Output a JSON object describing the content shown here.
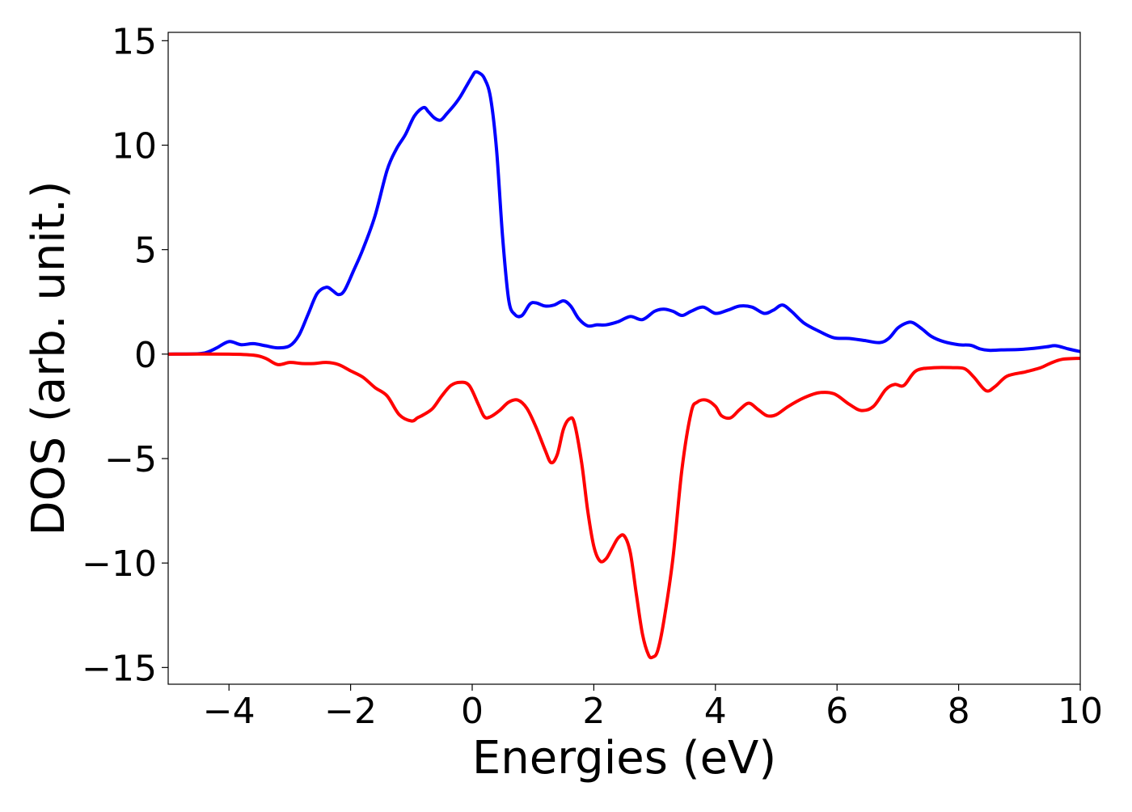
{
  "chart_data": {
    "type": "line",
    "title": "",
    "xlabel": "Energies (eV)",
    "ylabel": "DOS (arb. unit.)",
    "xlim": [
      -5,
      10
    ],
    "ylim": [
      -15.8,
      15.4
    ],
    "xticks": [
      -4,
      -2,
      0,
      2,
      4,
      6,
      8,
      10
    ],
    "xtick_labels": [
      "−4",
      "−2",
      "0",
      "2",
      "4",
      "6",
      "8",
      "10"
    ],
    "yticks": [
      15,
      10,
      5,
      0,
      -5,
      -10,
      -15
    ],
    "ytick_labels": [
      "15",
      "10",
      "5",
      "0",
      "−5",
      "−10",
      "−15"
    ],
    "grid": false,
    "legend": "none",
    "series": [
      {
        "color": "#0000ff",
        "x": [
          -5.0,
          -4.5,
          -4.35,
          -4.2,
          -4.0,
          -3.8,
          -3.6,
          -3.4,
          -3.2,
          -3.0,
          -2.85,
          -2.7,
          -2.55,
          -2.4,
          -2.3,
          -2.2,
          -2.1,
          -1.95,
          -1.8,
          -1.6,
          -1.4,
          -1.25,
          -1.1,
          -0.95,
          -0.8,
          -0.72,
          -0.62,
          -0.52,
          -0.42,
          -0.3,
          -0.2,
          -0.1,
          0.0,
          0.05,
          0.12,
          0.2,
          0.3,
          0.4,
          0.5,
          0.6,
          0.7,
          0.82,
          0.95,
          1.05,
          1.2,
          1.35,
          1.5,
          1.62,
          1.75,
          1.9,
          2.05,
          2.2,
          2.4,
          2.6,
          2.8,
          3.0,
          3.15,
          3.3,
          3.45,
          3.6,
          3.8,
          4.0,
          4.2,
          4.4,
          4.6,
          4.8,
          4.95,
          5.1,
          5.25,
          5.45,
          5.7,
          5.95,
          6.2,
          6.45,
          6.7,
          6.85,
          7.0,
          7.15,
          7.25,
          7.4,
          7.55,
          7.75,
          8.0,
          8.2,
          8.35,
          8.5,
          8.7,
          9.0,
          9.25,
          9.45,
          9.6,
          9.8,
          10.0
        ],
        "values": [
          0.0,
          0.02,
          0.1,
          0.3,
          0.6,
          0.45,
          0.5,
          0.4,
          0.3,
          0.4,
          0.9,
          1.9,
          2.9,
          3.2,
          3.05,
          2.85,
          3.05,
          4.0,
          5.0,
          6.6,
          8.8,
          9.8,
          10.5,
          11.4,
          11.8,
          11.6,
          11.3,
          11.2,
          11.5,
          11.9,
          12.3,
          12.8,
          13.3,
          13.5,
          13.45,
          13.2,
          12.3,
          9.8,
          5.6,
          2.6,
          1.9,
          1.85,
          2.4,
          2.45,
          2.3,
          2.35,
          2.55,
          2.3,
          1.7,
          1.35,
          1.4,
          1.4,
          1.55,
          1.8,
          1.65,
          2.05,
          2.15,
          2.05,
          1.85,
          2.05,
          2.25,
          1.95,
          2.1,
          2.3,
          2.25,
          1.95,
          2.1,
          2.35,
          2.05,
          1.5,
          1.1,
          0.78,
          0.75,
          0.65,
          0.55,
          0.75,
          1.25,
          1.5,
          1.5,
          1.2,
          0.85,
          0.6,
          0.45,
          0.42,
          0.25,
          0.18,
          0.2,
          0.22,
          0.28,
          0.35,
          0.4,
          0.25,
          0.12
        ]
      },
      {
        "color": "#ff0000",
        "x": [
          -5.0,
          -4.0,
          -3.6,
          -3.4,
          -3.2,
          -3.0,
          -2.8,
          -2.6,
          -2.4,
          -2.2,
          -2.0,
          -1.8,
          -1.6,
          -1.4,
          -1.2,
          -1.0,
          -0.9,
          -0.8,
          -0.65,
          -0.5,
          -0.35,
          -0.2,
          -0.05,
          0.1,
          0.2,
          0.3,
          0.45,
          0.6,
          0.75,
          0.9,
          1.05,
          1.2,
          1.3,
          1.4,
          1.5,
          1.6,
          1.68,
          1.8,
          1.9,
          2.0,
          2.1,
          2.2,
          2.3,
          2.4,
          2.5,
          2.6,
          2.7,
          2.8,
          2.9,
          2.97,
          3.05,
          3.15,
          3.3,
          3.45,
          3.6,
          3.7,
          3.85,
          4.0,
          4.1,
          4.25,
          4.4,
          4.55,
          4.7,
          4.85,
          5.0,
          5.2,
          5.45,
          5.7,
          5.95,
          6.2,
          6.4,
          6.6,
          6.8,
          6.95,
          7.1,
          7.3,
          7.6,
          7.9,
          8.1,
          8.25,
          8.45,
          8.6,
          8.8,
          9.1,
          9.35,
          9.5,
          9.7,
          10.0
        ],
        "values": [
          0.0,
          0.0,
          -0.05,
          -0.2,
          -0.5,
          -0.4,
          -0.45,
          -0.45,
          -0.4,
          -0.5,
          -0.8,
          -1.1,
          -1.6,
          -2.0,
          -2.9,
          -3.2,
          -3.05,
          -2.9,
          -2.6,
          -2.0,
          -1.5,
          -1.35,
          -1.5,
          -2.4,
          -3.0,
          -3.0,
          -2.7,
          -2.3,
          -2.2,
          -2.6,
          -3.5,
          -4.6,
          -5.2,
          -4.8,
          -3.6,
          -3.1,
          -3.3,
          -5.2,
          -7.5,
          -9.2,
          -9.9,
          -9.8,
          -9.3,
          -8.8,
          -8.7,
          -9.5,
          -11.5,
          -13.4,
          -14.4,
          -14.5,
          -14.2,
          -12.8,
          -9.8,
          -5.5,
          -2.8,
          -2.3,
          -2.2,
          -2.5,
          -2.95,
          -3.05,
          -2.65,
          -2.35,
          -2.65,
          -2.95,
          -2.9,
          -2.5,
          -2.1,
          -1.85,
          -1.9,
          -2.4,
          -2.7,
          -2.5,
          -1.7,
          -1.45,
          -1.5,
          -0.8,
          -0.65,
          -0.65,
          -0.7,
          -1.1,
          -1.75,
          -1.55,
          -1.05,
          -0.85,
          -0.65,
          -0.45,
          -0.25,
          -0.2
        ]
      }
    ]
  }
}
